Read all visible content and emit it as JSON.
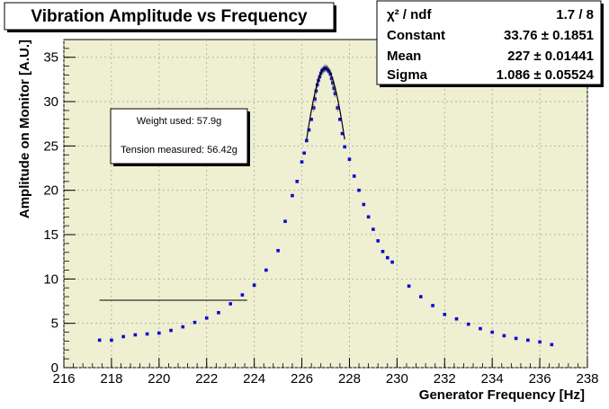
{
  "chart_data": {
    "type": "scatter",
    "title": "Vibration Amplitude vs Frequency",
    "xlabel": "Generator Frequency [Hz]",
    "ylabel": "Amplitude on Monitor [A.U.]",
    "xlim": [
      216,
      238
    ],
    "ylim": [
      0,
      37
    ],
    "x_ticks": [
      "216",
      "218",
      "220",
      "222",
      "224",
      "226",
      "228",
      "230",
      "232",
      "234",
      "236",
      "238"
    ],
    "y_ticks": [
      "0",
      "5",
      "10",
      "15",
      "20",
      "25",
      "30",
      "35"
    ],
    "grid": true,
    "colors": {
      "plot_background": "#efefd2",
      "marker": "#0a0ad2",
      "fit_line": "#000000",
      "grid": "#aaaa99"
    },
    "stats_box": {
      "rows": [
        {
          "label": "χ² / ndf",
          "value": "1.7 / 8"
        },
        {
          "label": "Constant",
          "value": "33.76 ± 0.1851"
        },
        {
          "label": "Mean",
          "value": "227 ± 0.01441"
        },
        {
          "label": "Sigma",
          "value": "1.086 ± 0.05524"
        }
      ]
    },
    "annotation": {
      "lines": [
        "Weight used: 57.9g",
        "Tension measured: 56.42g"
      ]
    },
    "reference_line": {
      "x": [
        217.5,
        223.7
      ],
      "y": 7.6
    },
    "fit": {
      "function": "gaus",
      "constant": 33.76,
      "mean": 227.0,
      "sigma": 1.086,
      "xrange": [
        226.2,
        227.8
      ]
    },
    "series": [
      {
        "points": [
          [
            217.5,
            3.1
          ],
          [
            218.0,
            3.1
          ],
          [
            218.5,
            3.5
          ],
          [
            219.0,
            3.7
          ],
          [
            219.5,
            3.8
          ],
          [
            220.0,
            3.9
          ],
          [
            220.5,
            4.2
          ],
          [
            221.0,
            4.6
          ],
          [
            221.5,
            5.1
          ],
          [
            222.0,
            5.6
          ],
          [
            222.5,
            6.2
          ],
          [
            223.0,
            7.2
          ],
          [
            223.5,
            8.2
          ],
          [
            224.0,
            9.3
          ],
          [
            224.5,
            11.0
          ],
          [
            225.0,
            13.2
          ],
          [
            225.3,
            16.5
          ],
          [
            225.6,
            19.4
          ],
          [
            225.8,
            21.0
          ],
          [
            226.0,
            23.2
          ],
          [
            226.1,
            24.2
          ],
          [
            226.2,
            25.6
          ],
          [
            226.3,
            26.8
          ],
          [
            226.4,
            28.0
          ],
          [
            226.5,
            29.3
          ],
          [
            226.55,
            30.3
          ],
          [
            226.6,
            31.2
          ],
          [
            226.65,
            31.9
          ],
          [
            226.7,
            32.4
          ],
          [
            226.75,
            32.8
          ],
          [
            226.8,
            33.2
          ],
          [
            226.85,
            33.5
          ],
          [
            226.9,
            33.6
          ],
          [
            226.95,
            33.7
          ],
          [
            227.0,
            33.8
          ],
          [
            227.05,
            33.7
          ],
          [
            227.1,
            33.6
          ],
          [
            227.15,
            33.4
          ],
          [
            227.2,
            33.1
          ],
          [
            227.25,
            32.6
          ],
          [
            227.3,
            32.1
          ],
          [
            227.35,
            31.5
          ],
          [
            227.4,
            30.9
          ],
          [
            227.5,
            29.3
          ],
          [
            227.6,
            28.0
          ],
          [
            227.7,
            26.4
          ],
          [
            227.8,
            24.9
          ],
          [
            228.0,
            23.5
          ],
          [
            228.2,
            21.6
          ],
          [
            228.4,
            20.0
          ],
          [
            228.6,
            18.4
          ],
          [
            228.8,
            17.0
          ],
          [
            229.0,
            15.6
          ],
          [
            229.2,
            14.3
          ],
          [
            229.4,
            13.1
          ],
          [
            229.6,
            12.4
          ],
          [
            229.8,
            11.9
          ],
          [
            230.5,
            9.2
          ],
          [
            231.0,
            8.0
          ],
          [
            231.5,
            7.0
          ],
          [
            232.0,
            6.0
          ],
          [
            232.5,
            5.5
          ],
          [
            233.0,
            4.9
          ],
          [
            233.5,
            4.4
          ],
          [
            234.0,
            4.0
          ],
          [
            234.5,
            3.6
          ],
          [
            235.0,
            3.3
          ],
          [
            235.5,
            3.1
          ],
          [
            236.0,
            2.9
          ],
          [
            236.5,
            2.6
          ]
        ]
      }
    ]
  }
}
